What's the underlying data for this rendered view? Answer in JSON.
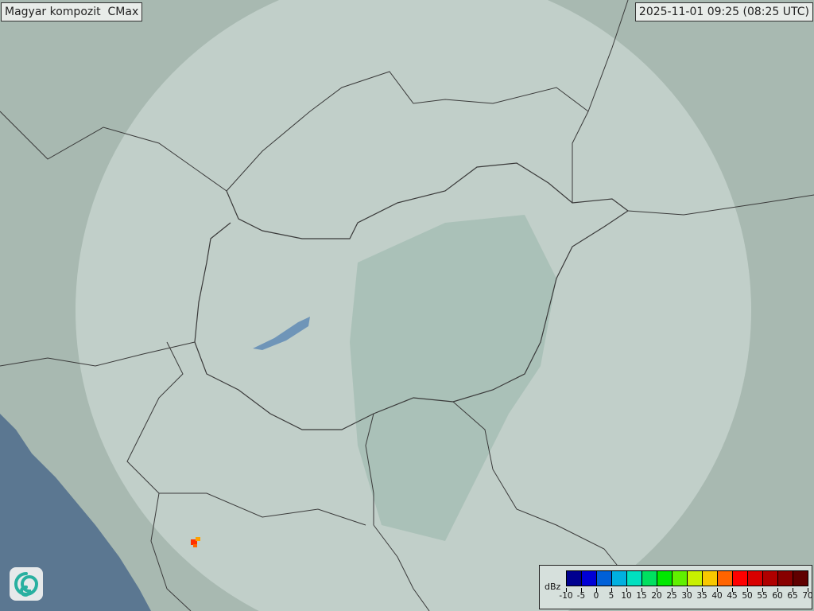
{
  "header": {
    "title": "Magyar kompozit  CMax",
    "timestamp": "2025-11-01 09:25 (08:25 UTC)"
  },
  "legend": {
    "unit": "dBz",
    "ticks": [
      "-10",
      "-5",
      "0",
      "5",
      "10",
      "15",
      "20",
      "25",
      "30",
      "35",
      "40",
      "45",
      "50",
      "55",
      "60",
      "65",
      "70"
    ],
    "colors": [
      "#00008f",
      "#0000d6",
      "#0060d8",
      "#00b0e0",
      "#00e0c0",
      "#00e060",
      "#00e800",
      "#60f000",
      "#c8f000",
      "#f8c800",
      "#ff6400",
      "#ff0000",
      "#d80000",
      "#b00000",
      "#880000",
      "#600000"
    ]
  },
  "map": {
    "colors": {
      "land": "#a8b9b1",
      "coverage": "#c8d6d0",
      "lowland": "#9fb8ae",
      "sea": "#5b7791",
      "border": "#3a3a3a"
    },
    "echo": {
      "colors": [
        "#ff3000",
        "#ffa000"
      ]
    }
  },
  "logo": {
    "icon": "swirl-logo-icon"
  }
}
